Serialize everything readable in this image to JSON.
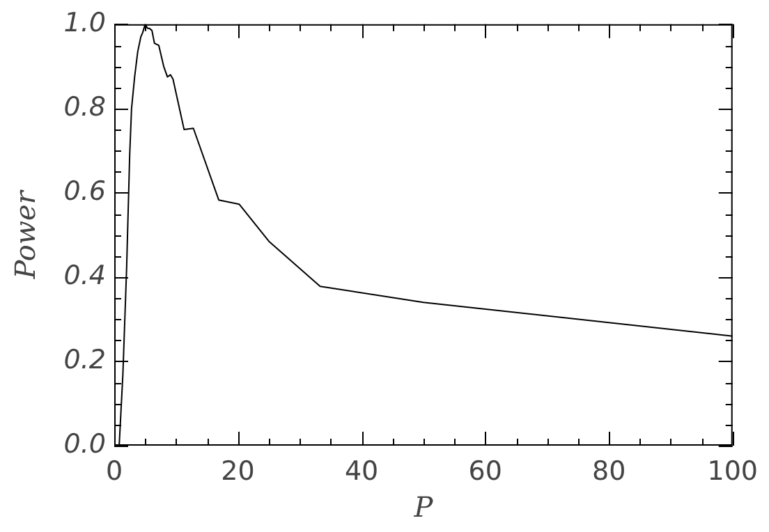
{
  "chart_data": {
    "type": "line",
    "xlabel": "P",
    "ylabel": "Power",
    "x": [
      0.8,
      1.4,
      2.0,
      2.5,
      2.8,
      3.3,
      3.8,
      4.3,
      4.6,
      5.0,
      5.4,
      5.7,
      6.1,
      6.5,
      7.2,
      8.0,
      8.6,
      9.1,
      9.5,
      11.3,
      12.8,
      16.9,
      20.2,
      25,
      33.3,
      50,
      100
    ],
    "series": [
      {
        "color": "#000000",
        "values": [
          0.0,
          0.17,
          0.42,
          0.69,
          0.8,
          0.875,
          0.935,
          0.97,
          0.98,
          1.0,
          0.99,
          0.99,
          0.985,
          0.955,
          0.95,
          0.9,
          0.875,
          0.88,
          0.87,
          0.75,
          0.753,
          0.583,
          0.573,
          0.485,
          0.378,
          0.34,
          0.26
        ]
      }
    ],
    "xlim": [
      0,
      100
    ],
    "xticks": [
      0,
      {
        "value": 5,
        "label": null
      },
      {
        "value": 10,
        "label": null
      },
      {
        "value": 15,
        "label": null
      },
      20,
      {
        "value": 25,
        "label": null
      },
      {
        "value": 30,
        "label": null
      },
      {
        "value": 35,
        "label": null
      },
      40,
      {
        "value": 45,
        "label": null
      },
      {
        "value": 50,
        "label": null
      },
      {
        "value": 55,
        "label": null
      },
      60,
      {
        "value": 65,
        "label": null
      },
      {
        "value": 70,
        "label": null
      },
      {
        "value": 75,
        "label": null
      },
      80,
      {
        "value": 85,
        "label": null
      },
      {
        "value": 90,
        "label": null
      },
      {
        "value": 95,
        "label": null
      },
      100
    ],
    "ylim": [
      0,
      1
    ],
    "yticks": [
      {
        "value": 0,
        "label": "0.0"
      },
      {
        "value": 0.05,
        "label": null
      },
      {
        "value": 0.1,
        "label": null
      },
      {
        "value": 0.15,
        "label": null
      },
      0.2,
      {
        "value": 0.25,
        "label": null
      },
      {
        "value": 0.3,
        "label": null
      },
      {
        "value": 0.35,
        "label": null
      },
      0.4,
      {
        "value": 0.45,
        "label": null
      },
      {
        "value": 0.5,
        "label": null
      },
      {
        "value": 0.55,
        "label": null
      },
      0.6,
      {
        "value": 0.65,
        "label": null
      },
      {
        "value": 0.7,
        "label": null
      },
      {
        "value": 0.75,
        "label": null
      },
      0.8,
      {
        "value": 0.85,
        "label": null
      },
      {
        "value": 0.9,
        "label": null
      },
      {
        "value": 0.95,
        "label": null
      },
      {
        "value": 1,
        "label": "1.0"
      }
    ],
    "grid": false,
    "legend": false,
    "marker": "none",
    "line_style": "solid"
  }
}
